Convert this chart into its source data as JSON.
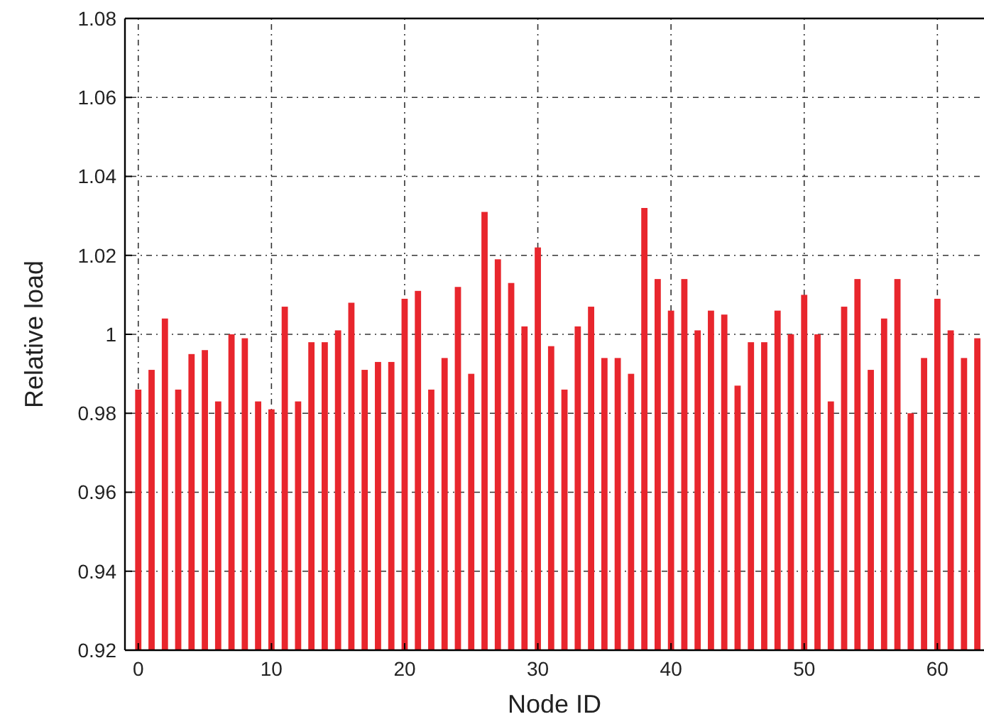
{
  "chart_data": {
    "type": "bar",
    "xlabel": "Node ID",
    "ylabel": "Relative load",
    "x": [
      0,
      1,
      2,
      3,
      4,
      5,
      6,
      7,
      8,
      9,
      10,
      11,
      12,
      13,
      14,
      15,
      16,
      17,
      18,
      19,
      20,
      21,
      22,
      23,
      24,
      25,
      26,
      27,
      28,
      29,
      30,
      31,
      32,
      33,
      34,
      35,
      36,
      37,
      38,
      39,
      40,
      41,
      42,
      43,
      44,
      45,
      46,
      47,
      48,
      49,
      50,
      51,
      52,
      53,
      54,
      55,
      56,
      57,
      58,
      59,
      60,
      61,
      62,
      63
    ],
    "values": [
      0.986,
      0.991,
      1.004,
      0.986,
      0.995,
      0.996,
      0.983,
      1.0,
      0.999,
      0.983,
      0.981,
      1.007,
      0.983,
      0.998,
      0.998,
      1.001,
      1.008,
      0.991,
      0.993,
      0.993,
      1.009,
      1.011,
      0.986,
      0.994,
      1.012,
      0.99,
      1.031,
      1.019,
      1.013,
      1.002,
      1.022,
      0.997,
      0.986,
      1.002,
      1.007,
      0.994,
      0.994,
      0.99,
      1.032,
      1.014,
      1.006,
      1.014,
      1.001,
      1.006,
      1.005,
      0.987,
      0.998,
      0.998,
      1.006,
      1.0,
      1.01,
      1.0,
      0.983,
      1.007,
      1.014,
      0.991,
      1.004,
      1.014,
      0.98,
      0.994,
      1.009,
      1.001,
      0.994,
      0.999
    ],
    "color": "#e8262d",
    "xlim": [
      -1,
      63.5
    ],
    "xticks": [
      0,
      10,
      20,
      30,
      40,
      50,
      60
    ],
    "ylim": [
      0.92,
      1.08
    ],
    "yticks": [
      0.92,
      0.94,
      0.96,
      0.98,
      1,
      1.02,
      1.04,
      1.06,
      1.08
    ],
    "grid": true
  }
}
